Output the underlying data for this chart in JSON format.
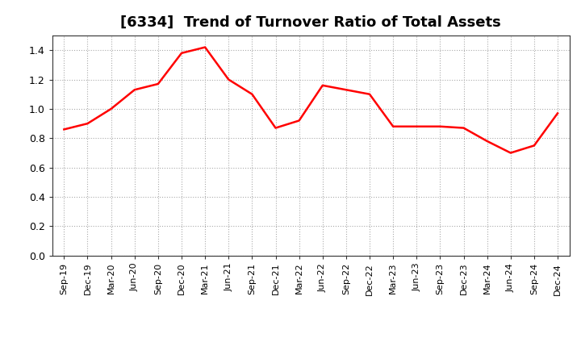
{
  "title": "[6334]  Trend of Turnover Ratio of Total Assets",
  "title_fontsize": 13,
  "line_color": "#FF0000",
  "line_width": 1.8,
  "background_color": "#FFFFFF",
  "grid_color": "#AAAAAA",
  "xlabels": [
    "Sep-19",
    "Dec-19",
    "Mar-20",
    "Jun-20",
    "Sep-20",
    "Dec-20",
    "Mar-21",
    "Jun-21",
    "Sep-21",
    "Dec-21",
    "Mar-22",
    "Jun-22",
    "Sep-22",
    "Dec-22",
    "Mar-23",
    "Jun-23",
    "Sep-23",
    "Dec-23",
    "Mar-24",
    "Jun-24",
    "Sep-24",
    "Dec-24"
  ],
  "values": [
    0.86,
    0.9,
    1.0,
    1.13,
    1.17,
    1.38,
    1.42,
    1.2,
    1.1,
    0.87,
    0.92,
    1.16,
    1.13,
    1.1,
    0.88,
    0.88,
    0.88,
    0.87,
    0.78,
    0.7,
    0.75,
    0.97
  ],
  "ylim": [
    0.0,
    1.5
  ],
  "yticks": [
    0.0,
    0.2,
    0.4,
    0.6,
    0.8,
    1.0,
    1.2,
    1.4
  ],
  "tick_label_fontsize": 9,
  "xlabel_fontsize": 8
}
